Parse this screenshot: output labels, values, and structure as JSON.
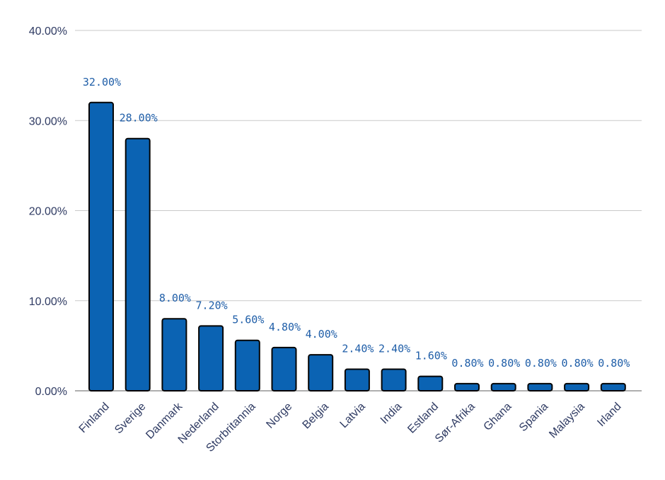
{
  "chart_data": {
    "type": "bar",
    "categories": [
      "Finland",
      "Sverige",
      "Danmark",
      "Nederland",
      "Storbritannia",
      "Norge",
      "Belgia",
      "Latvia",
      "India",
      "Estland",
      "Sør-Afrika",
      "Ghana",
      "Spania",
      "Malaysia",
      "Irland"
    ],
    "values": [
      32,
      28,
      8,
      7.2,
      5.6,
      4.8,
      4,
      2.4,
      2.4,
      1.6,
      0.8,
      0.8,
      0.8,
      0.8,
      0.8
    ],
    "data_labels": [
      "32.00%",
      "28.00%",
      "8.00%",
      "7.20%",
      "5.60%",
      "4.80%",
      "4.00%",
      "2.40%",
      "2.40%",
      "1.60%",
      "0.80%",
      "0.80%",
      "0.80%",
      "0.80%",
      "0.80%"
    ],
    "y_ticks": [
      "0.00%",
      "10.00%",
      "20.00%",
      "30.00%",
      "40.00%"
    ],
    "ylim": [
      0,
      40
    ],
    "grid": true,
    "legend": "none",
    "title": "",
    "xlabel": "",
    "ylabel": "",
    "colors": {
      "bar": "#0b63b3",
      "bar_stroke": "#050505",
      "label": "#1f5ea8",
      "axis_text": "#2f3b63",
      "grid": "#c9c9c9"
    }
  }
}
